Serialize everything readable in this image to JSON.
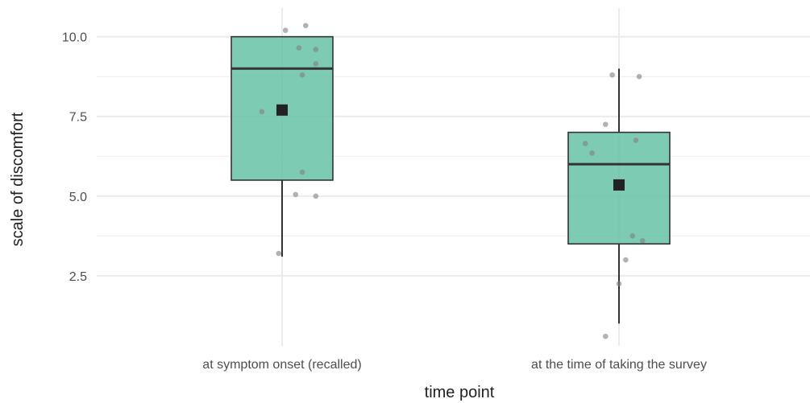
{
  "chart_data": {
    "type": "box",
    "xlabel": "time point",
    "ylabel": "scale of discomfort",
    "categories": [
      "at symptom onset (recalled)",
      "at the time of taking the survey"
    ],
    "yticks": [
      2.5,
      5.0,
      7.5,
      10.0
    ],
    "ytick_labels": [
      "2.5",
      "5.0",
      "7.5",
      "10.0"
    ],
    "ylim": [
      0.3,
      10.9
    ],
    "grid": true,
    "legend": "none",
    "colors": {
      "box_fill": "#66c2a5",
      "box_edge": "#333333",
      "points": "#7f7f7f",
      "mean_marker": "#222222",
      "grid": "#ebebeb"
    },
    "boxes": [
      {
        "category": "at symptom onset (recalled)",
        "whisker_low": 3.1,
        "q1": 5.5,
        "median": 9.0,
        "q3": 10.0,
        "whisker_high": 10.0,
        "mean": 7.7,
        "points": [
          {
            "cat_offset": 0.01,
            "y": 10.2
          },
          {
            "cat_offset": 0.07,
            "y": 10.35
          },
          {
            "cat_offset": 0.05,
            "y": 9.65
          },
          {
            "cat_offset": 0.1,
            "y": 9.6
          },
          {
            "cat_offset": 0.1,
            "y": 9.15
          },
          {
            "cat_offset": -0.06,
            "y": 7.65
          },
          {
            "cat_offset": 0.06,
            "y": 8.8
          },
          {
            "cat_offset": 0.06,
            "y": 5.75
          },
          {
            "cat_offset": 0.04,
            "y": 5.05
          },
          {
            "cat_offset": 0.1,
            "y": 5.0
          },
          {
            "cat_offset": -0.01,
            "y": 3.2
          }
        ]
      },
      {
        "category": "at the time of taking the survey",
        "whisker_low": 1.0,
        "q1": 3.5,
        "median": 6.0,
        "q3": 7.0,
        "whisker_high": 9.0,
        "mean": 5.35,
        "points": [
          {
            "cat_offset": -0.02,
            "y": 8.8
          },
          {
            "cat_offset": 0.06,
            "y": 8.75
          },
          {
            "cat_offset": -0.04,
            "y": 7.25
          },
          {
            "cat_offset": -0.1,
            "y": 6.65
          },
          {
            "cat_offset": -0.08,
            "y": 6.35
          },
          {
            "cat_offset": 0.05,
            "y": 6.75
          },
          {
            "cat_offset": 0.04,
            "y": 3.75
          },
          {
            "cat_offset": 0.07,
            "y": 3.6
          },
          {
            "cat_offset": 0.02,
            "y": 3.0
          },
          {
            "cat_offset": 0.0,
            "y": 2.25
          },
          {
            "cat_offset": -0.04,
            "y": 0.6
          }
        ]
      }
    ]
  }
}
